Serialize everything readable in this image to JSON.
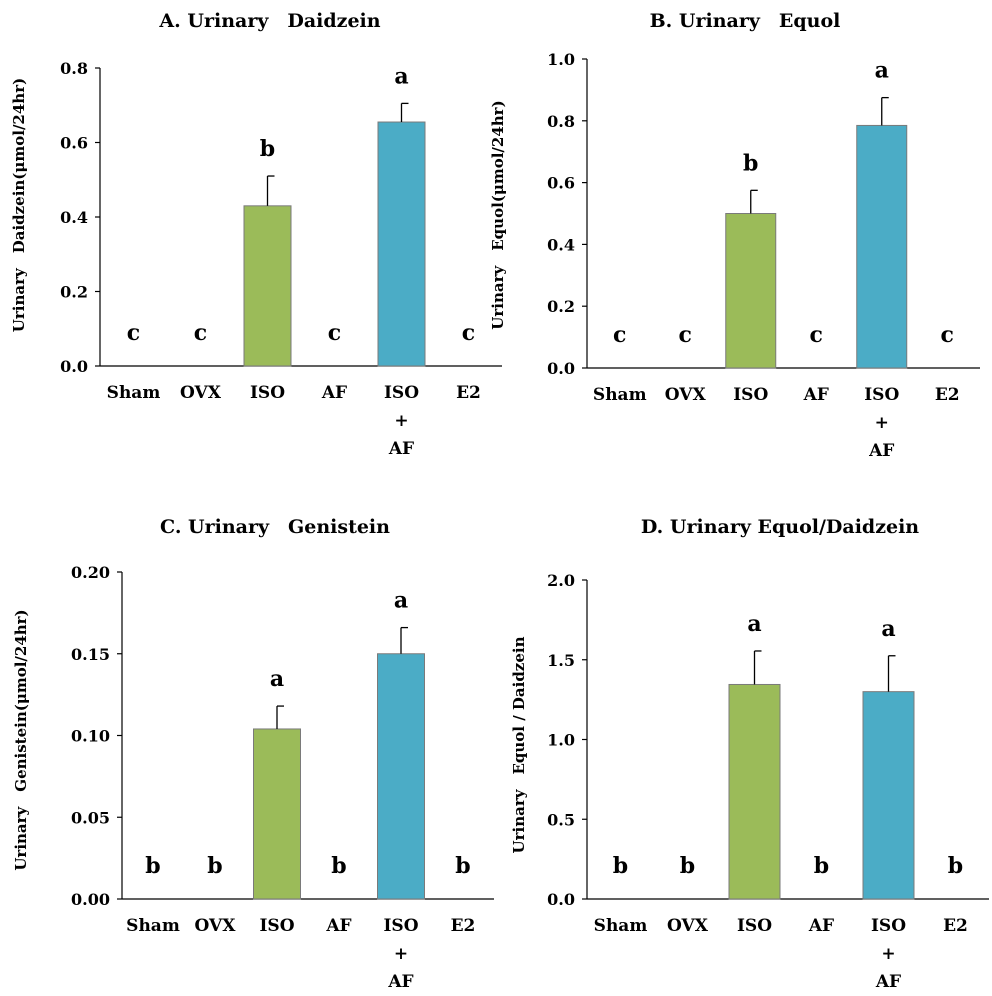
{
  "chart_data": [
    {
      "type": "bar",
      "title": "A. Urinary　Daidzein",
      "ylabel": "Urinary　Daidzein(μmol/24hr)",
      "categories": [
        [
          "Sham"
        ],
        [
          "OVX"
        ],
        [
          "ISO"
        ],
        [
          "AF"
        ],
        [
          "ISO",
          "+",
          "AF"
        ],
        [
          "E2"
        ]
      ],
      "values": [
        0,
        0,
        0.43,
        0,
        0.655,
        0
      ],
      "errors": [
        0,
        0,
        0.08,
        0,
        0.05,
        0
      ],
      "significance": [
        "c",
        "c",
        "b",
        "c",
        "a",
        "c"
      ],
      "ylim": [
        0,
        0.8
      ],
      "yticks": [
        "0.0",
        "0.2",
        "0.4",
        "0.6",
        "0.8"
      ],
      "bar_colors": [
        "",
        "",
        "#9BBB59",
        "",
        "#4BACC6",
        ""
      ]
    },
    {
      "type": "bar",
      "title": "B. Urinary　Equol",
      "ylabel": "Urinary　Equol(μmol/24hr)",
      "categories": [
        [
          "Sham"
        ],
        [
          "OVX"
        ],
        [
          "ISO"
        ],
        [
          "AF"
        ],
        [
          "ISO",
          "+",
          "AF"
        ],
        [
          "E2"
        ]
      ],
      "values": [
        0,
        0,
        0.5,
        0,
        0.785,
        0
      ],
      "errors": [
        0,
        0,
        0.075,
        0,
        0.09,
        0
      ],
      "significance": [
        "c",
        "c",
        "b",
        "c",
        "a",
        "c"
      ],
      "ylim": [
        0,
        1.0
      ],
      "yticks": [
        "0.0",
        "0.2",
        "0.4",
        "0.6",
        "0.8",
        "1.0"
      ],
      "bar_colors": [
        "",
        "",
        "#9BBB59",
        "",
        "#4BACC6",
        ""
      ]
    },
    {
      "type": "bar",
      "title": "C. Urinary　Genistein",
      "ylabel": "Urinary　Genistein(μmol/24hr)",
      "categories": [
        [
          "Sham"
        ],
        [
          "OVX"
        ],
        [
          "ISO"
        ],
        [
          "AF"
        ],
        [
          "ISO",
          "+",
          "AF"
        ],
        [
          "E2"
        ]
      ],
      "values": [
        0,
        0,
        0.104,
        0,
        0.15,
        0
      ],
      "errors": [
        0,
        0,
        0.014,
        0,
        0.016,
        0
      ],
      "significance": [
        "b",
        "b",
        "a",
        "b",
        "a",
        "b"
      ],
      "ylim": [
        0,
        0.2
      ],
      "yticks": [
        "0.00",
        "0.05",
        "0.10",
        "0.15",
        "0.20"
      ],
      "bar_colors": [
        "",
        "",
        "#9BBB59",
        "",
        "#4BACC6",
        ""
      ]
    },
    {
      "type": "bar",
      "title": "D. Urinary Equol/Daidzein",
      "ylabel": "Urinary　Equol / Daidzein",
      "categories": [
        [
          "Sham"
        ],
        [
          "OVX"
        ],
        [
          "ISO"
        ],
        [
          "AF"
        ],
        [
          "ISO",
          "+",
          "AF"
        ],
        [
          "E2"
        ]
      ],
      "values": [
        0,
        0,
        1.345,
        0,
        1.3,
        0
      ],
      "errors": [
        0,
        0,
        0.21,
        0,
        0.225,
        0
      ],
      "significance": [
        "b",
        "b",
        "a",
        "b",
        "a",
        "b"
      ],
      "ylim": [
        0,
        2.0
      ],
      "yticks": [
        "0.0",
        "0.5",
        "1.0",
        "1.5",
        "2.0"
      ],
      "bar_colors": [
        "",
        "",
        "#9BBB59",
        "",
        "#4BACC6",
        ""
      ]
    }
  ]
}
